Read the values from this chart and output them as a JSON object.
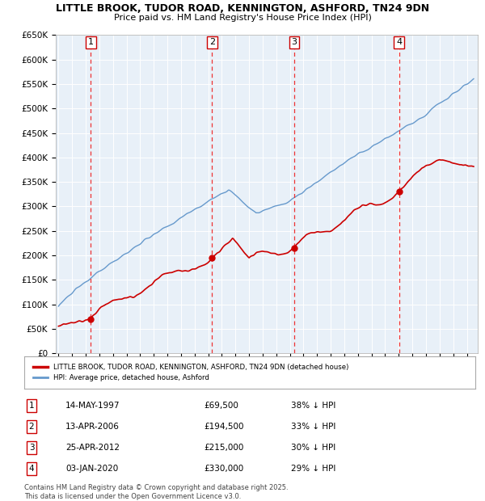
{
  "title": "LITTLE BROOK, TUDOR ROAD, KENNINGTON, ASHFORD, TN24 9DN",
  "subtitle": "Price paid vs. HM Land Registry's House Price Index (HPI)",
  "transactions": [
    {
      "num": 1,
      "date": "14-MAY-1997",
      "year": 1997.37,
      "price": 69500,
      "hpi_pct": "38% ↓ HPI"
    },
    {
      "num": 2,
      "date": "13-APR-2006",
      "year": 2006.28,
      "price": 194500,
      "hpi_pct": "33% ↓ HPI"
    },
    {
      "num": 3,
      "date": "25-APR-2012",
      "year": 2012.32,
      "price": 215000,
      "hpi_pct": "30% ↓ HPI"
    },
    {
      "num": 4,
      "date": "03-JAN-2020",
      "year": 2020.01,
      "price": 330000,
      "hpi_pct": "29% ↓ HPI"
    }
  ],
  "red_line_color": "#cc0000",
  "blue_line_color": "#6699cc",
  "vline_color": "#ee3333",
  "grid_color": "#cccccc",
  "background_color": "#ffffff",
  "chart_bg_color": "#e8f0f8",
  "legend_label_red": "LITTLE BROOK, TUDOR ROAD, KENNINGTON, ASHFORD, TN24 9DN (detached house)",
  "legend_label_blue": "HPI: Average price, detached house, Ashford",
  "footer_text": "Contains HM Land Registry data © Crown copyright and database right 2025.\nThis data is licensed under the Open Government Licence v3.0.",
  "ylim": [
    0,
    650000
  ],
  "ytick_step": 50000,
  "xmin": 1994.8,
  "xmax": 2025.8
}
